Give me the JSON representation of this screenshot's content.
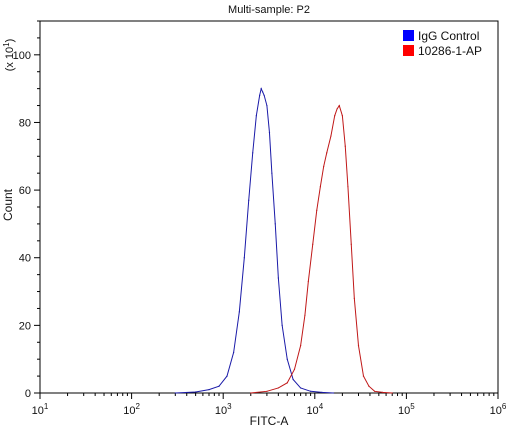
{
  "chart_data": {
    "type": "line",
    "title": "Multi-sample: P2",
    "xlabel": "FITC-A",
    "ylabel": "Count",
    "y_multiplier_label": "(x 10",
    "y_multiplier_exp": "1",
    "y_multiplier_close": ")",
    "x_scale": "log",
    "xlim": [
      10,
      1000000
    ],
    "ylim": [
      0,
      110
    ],
    "x_ticks": [
      {
        "value": 10,
        "base": "10",
        "exp": "1"
      },
      {
        "value": 100,
        "base": "10",
        "exp": "2"
      },
      {
        "value": 1000,
        "base": "10",
        "exp": "3"
      },
      {
        "value": 10000,
        "base": "10",
        "exp": "4"
      },
      {
        "value": 100000,
        "base": "10",
        "exp": "5"
      },
      {
        "value": 1000000,
        "base": "10",
        "exp": "6"
      }
    ],
    "y_ticks": [
      0,
      20,
      40,
      60,
      80,
      100
    ],
    "legend_position": "top-right",
    "series": [
      {
        "name": "IgG Control",
        "color": "#1a1aa8",
        "legend_color": "#0000ff",
        "x": [
          300,
          500,
          700,
          900,
          1100,
          1300,
          1500,
          1700,
          1900,
          2100,
          2300,
          2500,
          2600,
          2700,
          2800,
          3000,
          3200,
          3400,
          3700,
          4000,
          4400,
          5000,
          5800,
          7000,
          9000,
          12000,
          16000
        ],
        "y": [
          0,
          0.3,
          1,
          2,
          5,
          12,
          24,
          40,
          57,
          71,
          82,
          88,
          90,
          89,
          88,
          85,
          77,
          65,
          50,
          34,
          20,
          10,
          4,
          1.5,
          0.5,
          0.2,
          0
        ]
      },
      {
        "name": "10286-1-AP",
        "color": "#c01818",
        "legend_color": "#ff0000",
        "x": [
          2000,
          3000,
          4000,
          5000,
          6000,
          7000,
          7800,
          8500,
          9500,
          10500,
          11500,
          12500,
          13500,
          15000,
          16500,
          17500,
          18500,
          20000,
          21500,
          23000,
          25000,
          27000,
          30000,
          34000,
          39000,
          45000,
          55000,
          70000
        ],
        "y": [
          0,
          0.5,
          1.5,
          3,
          7,
          14,
          23,
          33,
          44,
          54,
          61,
          67,
          71,
          76,
          82,
          84,
          85,
          82,
          73,
          61,
          44,
          28,
          14,
          5,
          2,
          0.5,
          0.2,
          0
        ]
      }
    ]
  }
}
